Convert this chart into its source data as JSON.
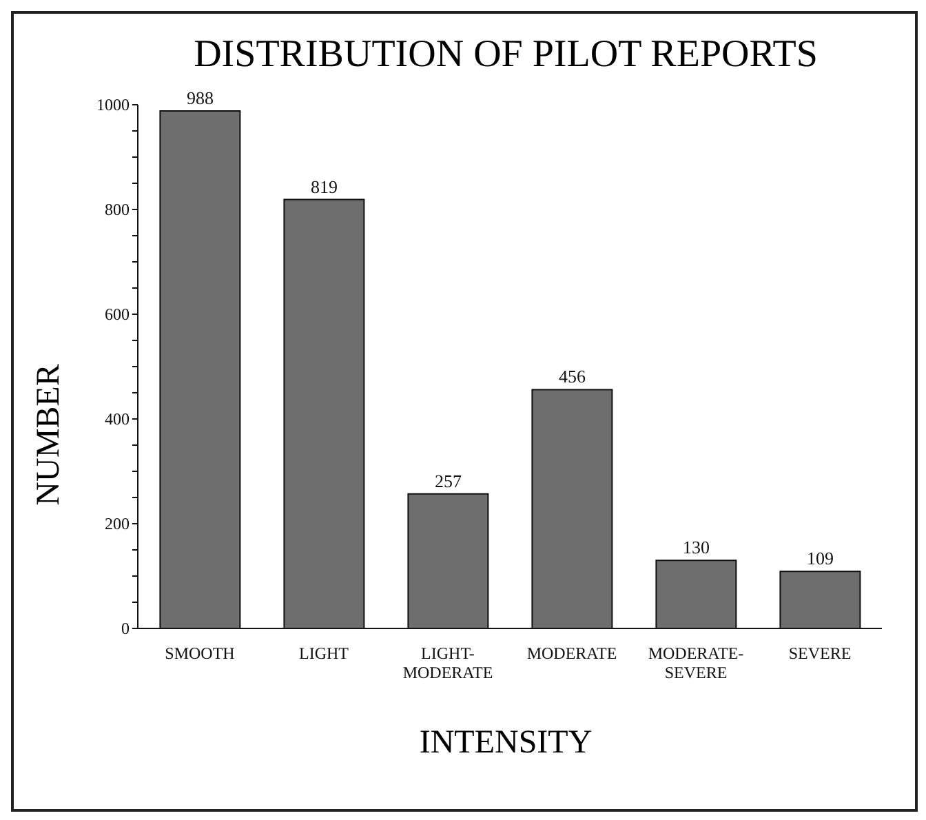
{
  "chart_data": {
    "type": "bar",
    "title": "DISTRIBUTION OF PILOT REPORTS",
    "xlabel": "INTENSITY",
    "ylabel": "NUMBER",
    "categories": [
      "SMOOTH",
      "LIGHT",
      "LIGHT-MODERATE",
      "MODERATE",
      "MODERATE-SEVERE",
      "SEVERE"
    ],
    "values": [
      988,
      819,
      257,
      456,
      130,
      109
    ],
    "color": "#6e6e6e",
    "ylim": [
      0,
      1000
    ],
    "yticks": [
      0,
      {
        "value": 50,
        "label": null
      },
      {
        "value": 100,
        "label": null
      },
      {
        "value": 150,
        "label": null
      },
      200,
      {
        "value": 250,
        "label": null
      },
      {
        "value": 300,
        "label": null
      },
      {
        "value": 350,
        "label": null
      },
      400,
      {
        "value": 450,
        "label": null
      },
      {
        "value": 500,
        "label": null
      },
      {
        "value": 550,
        "label": null
      },
      600,
      {
        "value": 650,
        "label": null
      },
      {
        "value": 700,
        "label": null
      },
      {
        "value": 750,
        "label": null
      },
      800,
      {
        "value": 850,
        "label": null
      },
      {
        "value": 900,
        "label": null
      },
      {
        "value": 950,
        "label": null
      },
      1000
    ],
    "data_labels": true,
    "grid": false,
    "legend": false
  }
}
